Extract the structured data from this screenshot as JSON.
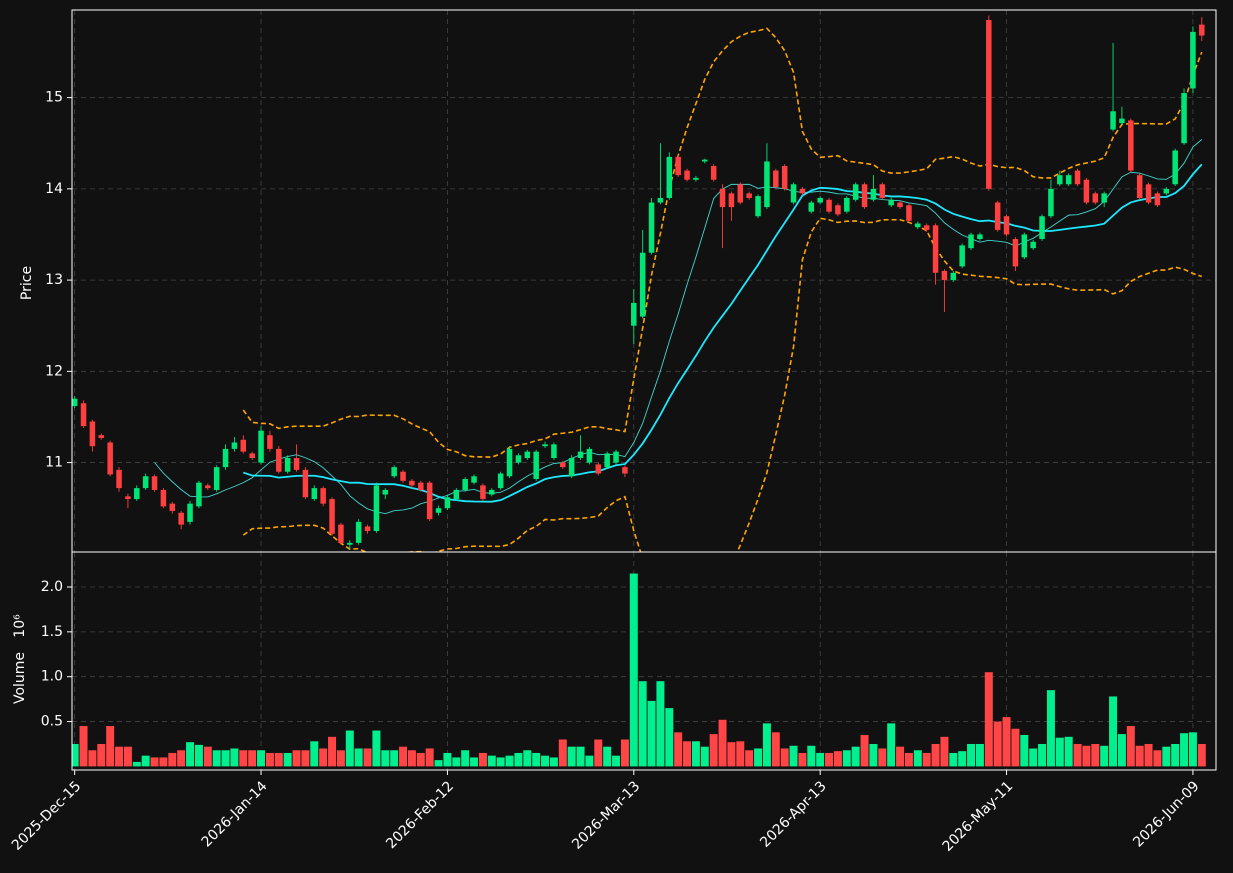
{
  "chart_data": {
    "type": "candlestick",
    "ylabel": "Price",
    "volume_ylabel": "Volume",
    "volume_offset_label": "10⁶",
    "ylim": [
      10.02,
      15.96
    ],
    "yticks": [
      11,
      12,
      13,
      14,
      15
    ],
    "volume_ylim": [
      -0.04,
      2.39
    ],
    "volume_yticks": [
      0.5,
      {
        "value": 1,
        "label": "1.0"
      },
      1.5,
      {
        "value": 2,
        "label": "2.0"
      }
    ],
    "xlim": [
      -0.3,
      128.6
    ],
    "grid": true,
    "up_color": "#00e676",
    "down_color": "#ff4040",
    "volume_up_color": "#00f090",
    "volume_down_color": "#ff4545",
    "ma_colors": [
      "#3fd8d0",
      "#1ee8ff"
    ],
    "band_color": "#ffa500",
    "categories": [
      "2025-Dec-15",
      null,
      null,
      null,
      null,
      null,
      null,
      null,
      null,
      null,
      null,
      null,
      null,
      null,
      null,
      null,
      null,
      null,
      null,
      null,
      null,
      "2026-Jan-14",
      null,
      null,
      null,
      null,
      null,
      null,
      null,
      null,
      null,
      null,
      null,
      null,
      null,
      null,
      null,
      null,
      null,
      null,
      null,
      null,
      "2026-Feb-12",
      null,
      null,
      null,
      null,
      null,
      null,
      null,
      null,
      null,
      null,
      null,
      null,
      null,
      null,
      null,
      null,
      null,
      null,
      null,
      null,
      "2026-Mar-13",
      null,
      null,
      null,
      null,
      null,
      null,
      null,
      null,
      null,
      null,
      null,
      null,
      null,
      null,
      null,
      null,
      null,
      null,
      null,
      null,
      "2026-Apr-13",
      null,
      null,
      null,
      null,
      null,
      null,
      null,
      null,
      null,
      null,
      null,
      null,
      null,
      null,
      null,
      null,
      null,
      null,
      null,
      null,
      "2026-May-11",
      null,
      null,
      null,
      null,
      null,
      null,
      null,
      null,
      null,
      null,
      null,
      null,
      null,
      null,
      null,
      null,
      null,
      null,
      null,
      null,
      "2026-Jun-09",
      null
    ],
    "candles": [
      [
        11.62,
        11.73,
        11.6,
        11.7
      ],
      [
        11.65,
        11.68,
        11.38,
        11.4
      ],
      [
        11.45,
        11.47,
        11.12,
        11.18
      ],
      [
        11.3,
        11.32,
        11.25,
        11.27
      ],
      [
        11.22,
        11.24,
        10.85,
        10.87
      ],
      [
        10.92,
        10.95,
        10.68,
        10.72
      ],
      [
        10.63,
        10.66,
        10.5,
        10.6
      ],
      [
        10.6,
        10.75,
        10.58,
        10.72
      ],
      [
        10.72,
        10.88,
        10.7,
        10.85
      ],
      [
        10.85,
        10.87,
        10.68,
        10.7
      ],
      [
        10.7,
        10.72,
        10.5,
        10.52
      ],
      [
        10.55,
        10.57,
        10.44,
        10.47
      ],
      [
        10.45,
        10.47,
        10.27,
        10.32
      ],
      [
        10.35,
        10.58,
        10.32,
        10.55
      ],
      [
        10.52,
        10.8,
        10.5,
        10.78
      ],
      [
        10.75,
        10.77,
        10.7,
        10.72
      ],
      [
        10.7,
        10.97,
        10.68,
        10.95
      ],
      [
        10.95,
        11.2,
        10.92,
        11.15
      ],
      [
        11.15,
        11.28,
        11.12,
        11.22
      ],
      [
        11.25,
        11.3,
        11.1,
        11.12
      ],
      [
        11.1,
        11.12,
        11.03,
        11.05
      ],
      [
        11.0,
        11.4,
        10.98,
        11.35
      ],
      [
        11.3,
        11.35,
        11.12,
        11.15
      ],
      [
        11.15,
        11.18,
        10.88,
        10.9
      ],
      [
        10.9,
        11.08,
        10.88,
        11.05
      ],
      [
        11.05,
        11.2,
        10.9,
        10.92
      ],
      [
        10.92,
        10.95,
        10.6,
        10.62
      ],
      [
        10.6,
        10.75,
        10.58,
        10.72
      ],
      [
        10.72,
        10.74,
        10.52,
        10.55
      ],
      [
        10.6,
        10.62,
        10.2,
        10.22
      ],
      [
        10.32,
        10.34,
        10.1,
        10.12
      ],
      [
        10.1,
        10.15,
        10.05,
        10.12
      ],
      [
        10.12,
        10.38,
        10.1,
        10.35
      ],
      [
        10.3,
        10.32,
        10.22,
        10.25
      ],
      [
        10.25,
        10.78,
        10.23,
        10.75
      ],
      [
        10.65,
        10.72,
        10.6,
        10.7
      ],
      [
        10.85,
        10.97,
        10.83,
        10.95
      ],
      [
        10.9,
        10.92,
        10.78,
        10.8
      ],
      [
        10.8,
        10.82,
        10.72,
        10.75
      ],
      [
        10.78,
        10.8,
        10.68,
        10.7
      ],
      [
        10.78,
        10.8,
        10.36,
        10.38
      ],
      [
        10.45,
        10.53,
        10.42,
        10.5
      ],
      [
        10.5,
        10.65,
        10.48,
        10.62
      ],
      [
        10.6,
        10.72,
        10.58,
        10.7
      ],
      [
        10.7,
        10.84,
        10.68,
        10.82
      ],
      [
        10.78,
        10.87,
        10.76,
        10.85
      ],
      [
        10.75,
        10.77,
        10.58,
        10.6
      ],
      [
        10.65,
        10.72,
        10.63,
        10.7
      ],
      [
        10.72,
        10.9,
        10.7,
        10.88
      ],
      [
        10.85,
        11.18,
        10.83,
        11.15
      ],
      [
        11.0,
        11.1,
        10.98,
        11.08
      ],
      [
        11.05,
        11.14,
        11.03,
        11.12
      ],
      [
        10.82,
        11.14,
        10.8,
        11.12
      ],
      [
        11.18,
        11.23,
        11.16,
        11.2
      ],
      [
        11.05,
        11.22,
        11.03,
        11.2
      ],
      [
        11.0,
        11.02,
        10.93,
        10.95
      ],
      [
        10.85,
        11.08,
        10.83,
        11.05
      ],
      [
        11.05,
        11.3,
        11.03,
        11.12
      ],
      [
        11.0,
        11.17,
        10.98,
        11.15
      ],
      [
        10.98,
        11.0,
        10.86,
        10.88
      ],
      [
        10.95,
        11.12,
        10.93,
        11.1
      ],
      [
        11.0,
        11.14,
        10.98,
        11.12
      ],
      [
        10.95,
        10.97,
        10.84,
        10.88
      ],
      [
        12.5,
        12.9,
        12.3,
        12.75
      ],
      [
        12.6,
        13.55,
        12.58,
        13.3
      ],
      [
        13.3,
        13.9,
        13.28,
        13.85
      ],
      [
        13.85,
        14.5,
        13.83,
        13.9
      ],
      [
        13.9,
        14.4,
        13.88,
        14.35
      ],
      [
        14.35,
        14.37,
        14.13,
        14.15
      ],
      [
        14.2,
        14.22,
        14.08,
        14.1
      ],
      [
        14.1,
        14.14,
        14.08,
        14.12
      ],
      [
        14.3,
        14.33,
        14.28,
        14.32
      ],
      [
        14.25,
        14.27,
        14.08,
        14.1
      ],
      [
        14.0,
        14.05,
        13.35,
        13.8
      ],
      [
        13.95,
        13.97,
        13.65,
        13.8
      ],
      [
        14.05,
        14.07,
        13.83,
        13.85
      ],
      [
        13.95,
        13.97,
        13.88,
        13.9
      ],
      [
        13.7,
        13.94,
        13.68,
        13.92
      ],
      [
        13.8,
        14.5,
        13.78,
        14.3
      ],
      [
        14.2,
        14.22,
        14.0,
        14.02
      ],
      [
        14.25,
        14.27,
        13.98,
        14.0
      ],
      [
        13.85,
        14.07,
        13.83,
        14.05
      ],
      [
        14.0,
        14.02,
        13.93,
        13.95
      ],
      [
        13.75,
        13.87,
        13.73,
        13.85
      ],
      [
        13.85,
        13.92,
        13.83,
        13.9
      ],
      [
        13.88,
        13.9,
        13.73,
        13.75
      ],
      [
        13.82,
        13.84,
        13.7,
        13.72
      ],
      [
        13.75,
        13.92,
        13.73,
        13.9
      ],
      [
        13.88,
        14.07,
        13.86,
        14.05
      ],
      [
        14.05,
        14.07,
        13.78,
        13.8
      ],
      [
        13.88,
        14.15,
        13.86,
        14.0
      ],
      [
        14.05,
        14.07,
        13.88,
        13.9
      ],
      [
        13.82,
        13.9,
        13.8,
        13.88
      ],
      [
        13.85,
        13.87,
        13.78,
        13.8
      ],
      [
        13.82,
        13.84,
        13.63,
        13.65
      ],
      [
        13.58,
        13.64,
        13.56,
        13.62
      ],
      [
        13.6,
        13.62,
        13.53,
        13.55
      ],
      [
        13.6,
        13.62,
        12.95,
        13.08
      ],
      [
        13.1,
        13.12,
        12.65,
        13.0
      ],
      [
        13.0,
        13.1,
        12.98,
        13.08
      ],
      [
        13.15,
        13.4,
        13.13,
        13.38
      ],
      [
        13.35,
        13.52,
        13.33,
        13.5
      ],
      [
        13.45,
        13.52,
        13.43,
        13.5
      ],
      [
        15.85,
        15.9,
        13.98,
        14.0
      ],
      [
        13.85,
        13.87,
        13.53,
        13.55
      ],
      [
        13.7,
        13.72,
        13.48,
        13.5
      ],
      [
        13.45,
        13.47,
        13.1,
        13.15
      ],
      [
        13.25,
        13.52,
        13.23,
        13.5
      ],
      [
        13.35,
        13.44,
        13.33,
        13.42
      ],
      [
        13.45,
        13.72,
        13.43,
        13.7
      ],
      [
        13.7,
        14.1,
        13.68,
        14.0
      ],
      [
        14.05,
        14.2,
        14.03,
        14.15
      ],
      [
        14.05,
        14.17,
        14.03,
        14.15
      ],
      [
        14.2,
        14.22,
        14.03,
        14.05
      ],
      [
        14.1,
        14.12,
        13.83,
        13.85
      ],
      [
        13.95,
        13.97,
        13.83,
        13.85
      ],
      [
        13.85,
        13.97,
        13.8,
        13.95
      ],
      [
        14.65,
        15.6,
        14.63,
        14.85
      ],
      [
        14.72,
        14.9,
        14.7,
        14.77
      ],
      [
        14.75,
        14.77,
        14.18,
        14.2
      ],
      [
        14.15,
        14.17,
        13.88,
        13.9
      ],
      [
        14.05,
        14.07,
        13.83,
        13.85
      ],
      [
        13.95,
        13.97,
        13.8,
        13.82
      ],
      [
        13.95,
        14.02,
        13.93,
        14.0
      ],
      [
        14.05,
        14.44,
        14.03,
        14.42
      ],
      [
        14.5,
        15.1,
        14.48,
        15.05
      ],
      [
        15.1,
        15.78,
        15.05,
        15.72
      ],
      [
        15.8,
        15.88,
        15.62,
        15.68
      ]
    ],
    "volume": [
      0.25,
      0.45,
      0.18,
      0.25,
      0.45,
      0.22,
      0.22,
      0.05,
      0.12,
      0.1,
      0.1,
      0.15,
      0.18,
      0.27,
      0.24,
      0.22,
      0.18,
      0.18,
      0.2,
      0.18,
      0.18,
      0.18,
      0.15,
      0.15,
      0.15,
      0.18,
      0.18,
      0.28,
      0.2,
      0.33,
      0.18,
      0.4,
      0.2,
      0.2,
      0.4,
      0.18,
      0.18,
      0.22,
      0.18,
      0.15,
      0.2,
      0.07,
      0.15,
      0.1,
      0.18,
      0.1,
      0.15,
      0.12,
      0.1,
      0.12,
      0.15,
      0.18,
      0.15,
      0.12,
      0.1,
      0.3,
      0.22,
      0.22,
      0.12,
      0.3,
      0.22,
      0.12,
      0.3,
      2.15,
      0.95,
      0.73,
      0.95,
      0.65,
      0.38,
      0.28,
      0.28,
      0.22,
      0.36,
      0.52,
      0.27,
      0.28,
      0.18,
      0.2,
      0.48,
      0.38,
      0.2,
      0.23,
      0.15,
      0.23,
      0.15,
      0.15,
      0.17,
      0.18,
      0.22,
      0.35,
      0.25,
      0.2,
      0.48,
      0.22,
      0.15,
      0.18,
      0.15,
      0.25,
      0.33,
      0.15,
      0.17,
      0.25,
      0.25,
      1.05,
      0.5,
      0.55,
      0.42,
      0.35,
      0.2,
      0.25,
      0.85,
      0.32,
      0.33,
      0.25,
      0.23,
      0.25,
      0.23,
      0.78,
      0.36,
      0.45,
      0.23,
      0.25,
      0.18,
      0.22,
      0.25,
      0.37,
      0.38,
      0.25
    ]
  }
}
